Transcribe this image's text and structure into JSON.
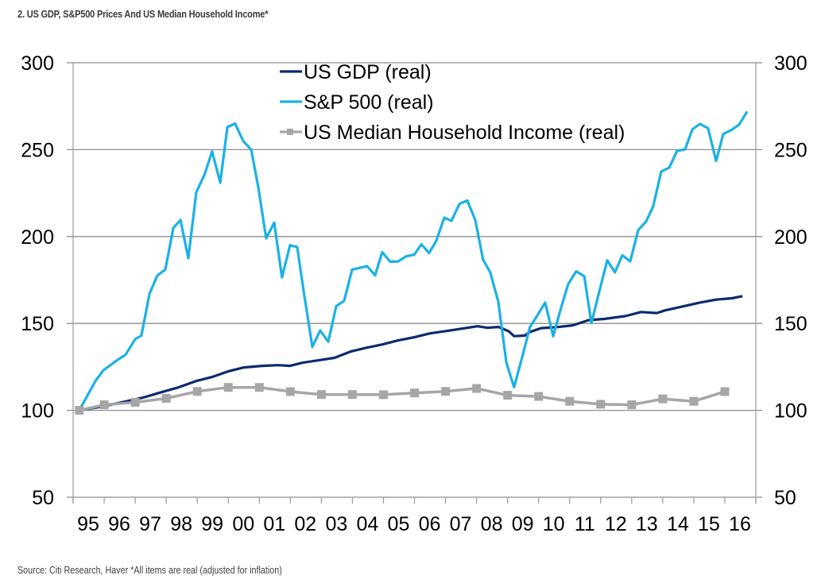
{
  "title": "2. US GDP, S&P500 Prices And US Median Household Income*",
  "source": "Source: Citi Research, Haver *All items are real (adjusted for inflation)",
  "chart_data": {
    "type": "line",
    "title": "2. US GDP, S&P500 Prices And US Median Household Income*",
    "xlabel": "",
    "ylabel": "",
    "xlim": [
      1995,
      2017
    ],
    "ylim": [
      50,
      300
    ],
    "yticks": [
      50,
      100,
      150,
      200,
      250,
      300
    ],
    "ytick_labels": [
      "50",
      "100",
      "150",
      "200",
      "250",
      "300"
    ],
    "y2ticks": [
      50,
      100,
      150,
      200,
      250,
      300
    ],
    "y2tick_labels": [
      "50",
      "100",
      "150",
      "200",
      "250",
      "300"
    ],
    "xtick_labels": [
      "95",
      "96",
      "97",
      "98",
      "99",
      "00",
      "01",
      "02",
      "03",
      "04",
      "05",
      "06",
      "07",
      "08",
      "09",
      "10",
      "11",
      "12",
      "13",
      "14",
      "15",
      "16"
    ],
    "grid": "horizontal",
    "legend_position": "top-center",
    "series": [
      {
        "name": "US GDP (real)",
        "color": "#0b2b6e",
        "marker": "none",
        "x": [
          1995.2,
          1995.97,
          1996.66,
          1997.25,
          1997.76,
          1998.35,
          1998.97,
          1999.48,
          1999.99,
          2000.5,
          2001.09,
          2001.6,
          2001.99,
          2002.4,
          2002.91,
          2003.42,
          2003.94,
          2004.45,
          2004.96,
          2005.47,
          2005.98,
          2006.5,
          2007.01,
          2007.52,
          2008.03,
          2008.36,
          2008.7,
          2009.03,
          2009.21,
          2009.55,
          2009.72,
          2010.08,
          2010.59,
          2011.1,
          2011.61,
          2012.12,
          2012.79,
          2013.3,
          2013.81,
          2014.07,
          2014.5,
          2015.2,
          2015.72,
          2016.23,
          2016.57
        ],
        "values": [
          100,
          102.3,
          105,
          107.3,
          110,
          113,
          116.9,
          119.2,
          122.4,
          124.7,
          125.6,
          126,
          125.6,
          127.4,
          128.8,
          130.2,
          133.8,
          136,
          137.9,
          140.2,
          142,
          144.3,
          145.6,
          147,
          148.4,
          147.5,
          148,
          145.6,
          142.7,
          143,
          145.1,
          147.3,
          147.9,
          148.9,
          151.9,
          152.6,
          154.2,
          156.6,
          156,
          157.5,
          159.2,
          162,
          163.7,
          164.5,
          165.7
        ]
      },
      {
        "name": "S&P 500 (real)",
        "color": "#1ab1e6",
        "marker": "none",
        "x": [
          1995.2,
          1995.72,
          1995.97,
          1996.43,
          1996.69,
          1997.0,
          1997.2,
          1997.46,
          1997.71,
          1997.97,
          1998.23,
          1998.46,
          1998.71,
          1998.97,
          1999.23,
          1999.48,
          1999.74,
          1999.97,
          2000.22,
          2000.48,
          2000.74,
          2000.97,
          2001.22,
          2001.48,
          2001.73,
          2001.99,
          2002.22,
          2002.45,
          2002.71,
          2002.96,
          2003.22,
          2003.48,
          2003.73,
          2003.99,
          2004.24,
          2004.47,
          2004.73,
          2004.96,
          2005.22,
          2005.47,
          2005.73,
          2005.99,
          2006.22,
          2006.47,
          2006.7,
          2006.96,
          2007.19,
          2007.45,
          2007.7,
          2007.96,
          2008.21,
          2008.44,
          2008.7,
          2008.96,
          2009.21,
          2009.47,
          2009.72,
          2009.96,
          2010.21,
          2010.47,
          2010.72,
          2010.95,
          2011.21,
          2011.47,
          2011.7,
          2011.95,
          2012.21,
          2012.46,
          2012.7,
          2012.95,
          2013.21,
          2013.46,
          2013.69,
          2013.95,
          2014.21,
          2014.46,
          2014.72,
          2014.95,
          2015.2,
          2015.46,
          2015.72,
          2015.95,
          2016.2,
          2016.46,
          2016.72
        ],
        "values": [
          100,
          116.9,
          123,
          129,
          132,
          141,
          143,
          167,
          177.5,
          181,
          205,
          209.5,
          187.5,
          225.5,
          235.5,
          249,
          231,
          263,
          265,
          255,
          250,
          228,
          199,
          208,
          176.5,
          195,
          194,
          166,
          136.5,
          146,
          139.5,
          160,
          163,
          181,
          182,
          183,
          177.7,
          191,
          185.5,
          185.7,
          188.6,
          189.6,
          195.5,
          190.5,
          197.5,
          210.9,
          209,
          218.8,
          220.7,
          209.5,
          186.7,
          179.4,
          162.6,
          127.4,
          113.3,
          130.6,
          147.9,
          154.6,
          162,
          142.7,
          158.8,
          172.6,
          180,
          177.2,
          150.2,
          168,
          186.3,
          179.4,
          189.2,
          185.7,
          203.7,
          208.6,
          217.3,
          237.4,
          239.7,
          249.3,
          250.2,
          261.6,
          264.8,
          262.3,
          243.5,
          259,
          261.2,
          264.4,
          272
        ]
      },
      {
        "name": "US Median Household Income (real)",
        "color": "#a6a6a6",
        "marker": "square",
        "x": [
          1995.2,
          1996,
          1997,
          1998,
          1999,
          2000,
          2001,
          2002,
          2003,
          2004,
          2005,
          2006,
          2007,
          2008,
          2009,
          2010,
          2011,
          2012,
          2013,
          2014,
          2015,
          2016
        ],
        "values": [
          100,
          103.2,
          104.6,
          106.9,
          110.9,
          113.2,
          113.2,
          110.8,
          109.1,
          109.1,
          109,
          110,
          110.9,
          112.6,
          108.7,
          108,
          105.2,
          103.5,
          103.2,
          106.6,
          105.2,
          110.8
        ]
      }
    ]
  }
}
